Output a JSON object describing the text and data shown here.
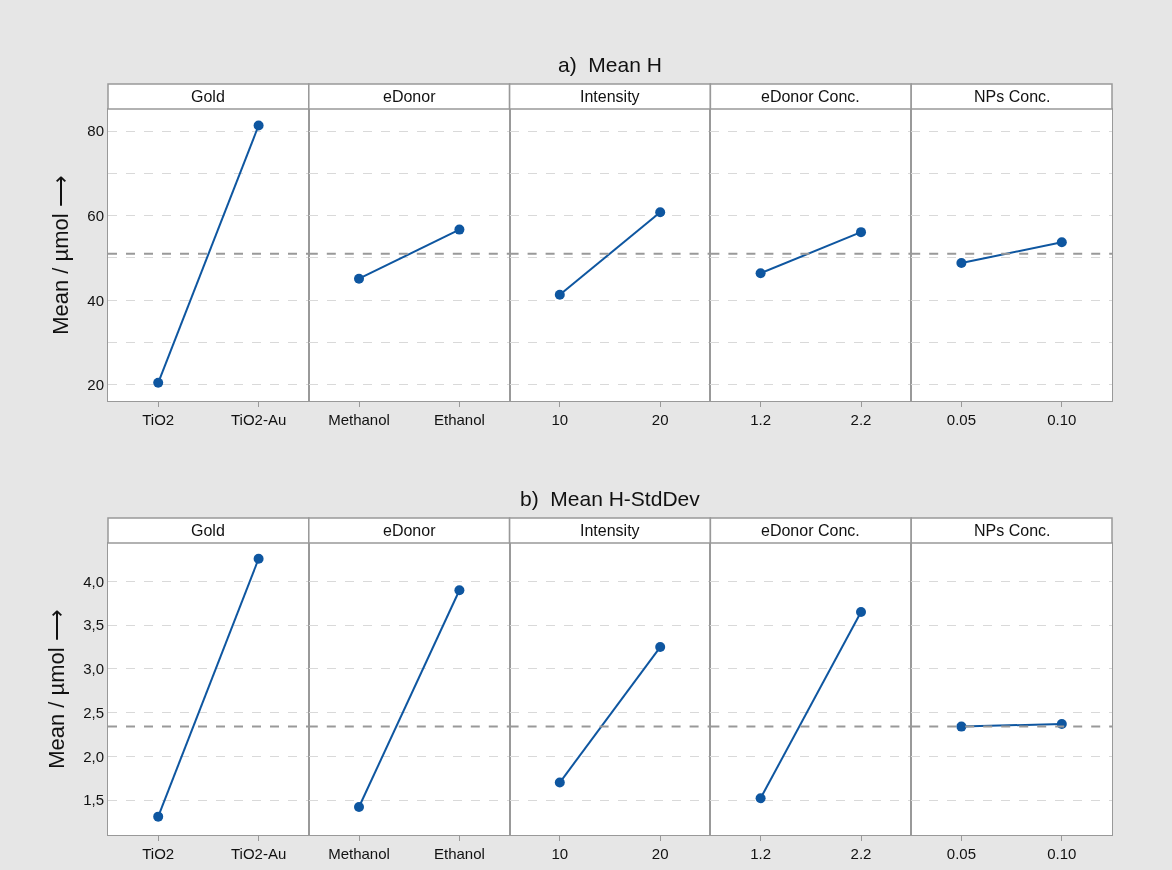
{
  "chart_data": [
    {
      "type": "line",
      "title": "Gold",
      "annotations": [
        "a)  Mean H"
      ],
      "ylabel": "Mean / µmol ⟶",
      "categories": [
        "TiO2",
        "TiO2-Au"
      ],
      "values": [
        20.5,
        81.3
      ],
      "color": "#0e56a0",
      "marker": "circle",
      "ylim": [
        16.2,
        85.2
      ],
      "yticks": [
        20,
        {
          "value": 30,
          "label": null
        },
        40,
        {
          "value": 50,
          "label": null
        },
        60,
        {
          "value": 70,
          "label": null
        },
        80
      ],
      "grid": "y",
      "ref_lines": [
        {
          "axis": "y",
          "value": 51.0,
          "color": "#999999",
          "line_style": "dashed"
        }
      ]
    },
    {
      "type": "line",
      "title": "eDonor",
      "categories": [
        "Methanol",
        "Ethanol"
      ],
      "values": [
        45.1,
        56.7
      ],
      "color": "#0e56a0",
      "marker": "circle",
      "ylim": [
        16.2,
        85.2
      ],
      "yticks": [
        20,
        30,
        40,
        50,
        60,
        70,
        80
      ],
      "grid": "y",
      "tick_labels": "x",
      "ref_lines": [
        {
          "axis": "y",
          "value": 51.0,
          "color": "#999999",
          "line_style": "dashed"
        }
      ]
    },
    {
      "type": "line",
      "title": "Intensity",
      "categories": [
        "10",
        "20"
      ],
      "values": [
        41.3,
        60.8
      ],
      "color": "#0e56a0",
      "marker": "circle",
      "ylim": [
        16.2,
        85.2
      ],
      "yticks": [
        20,
        30,
        40,
        50,
        60,
        70,
        80
      ],
      "grid": "y",
      "tick_labels": "x",
      "ref_lines": [
        {
          "axis": "y",
          "value": 51.0,
          "color": "#999999",
          "line_style": "dashed"
        }
      ]
    },
    {
      "type": "line",
      "title": "eDonor Conc.",
      "categories": [
        "1.2",
        "2.2"
      ],
      "values": [
        46.4,
        56.1
      ],
      "color": "#0e56a0",
      "marker": "circle",
      "ylim": [
        16.2,
        85.2
      ],
      "yticks": [
        20,
        30,
        40,
        50,
        60,
        70,
        80
      ],
      "grid": "y",
      "tick_labels": "x",
      "ref_lines": [
        {
          "axis": "y",
          "value": 51.0,
          "color": "#999999",
          "line_style": "dashed"
        }
      ]
    },
    {
      "type": "line",
      "title": "NPs Conc.",
      "categories": [
        "0.05",
        "0.10"
      ],
      "values": [
        48.8,
        53.7
      ],
      "color": "#0e56a0",
      "marker": "circle",
      "ylim": [
        16.2,
        85.2
      ],
      "yticks": [
        20,
        30,
        40,
        50,
        60,
        70,
        80
      ],
      "grid": "y",
      "tick_labels": "x",
      "ref_lines": [
        {
          "axis": "y",
          "value": 51.0,
          "color": "#999999",
          "line_style": "dashed"
        }
      ]
    },
    {
      "type": "line",
      "title": "Gold",
      "annotations": [
        "b)  Mean H-StdDev"
      ],
      "ylabel": "Mean / µmol ⟶",
      "categories": [
        "TiO2",
        "TiO2-Au"
      ],
      "values": [
        1.31,
        4.26
      ],
      "color": "#0e56a0",
      "marker": "circle",
      "ylim": [
        1.1,
        4.44
      ],
      "yticks": [
        {
          "value": 1.5,
          "label": "1,5"
        },
        {
          "value": 2.0,
          "label": "2,0"
        },
        {
          "value": 2.5,
          "label": "2,5"
        },
        {
          "value": 3.0,
          "label": "3,0"
        },
        {
          "value": 3.5,
          "label": "3,5"
        },
        {
          "value": 4.0,
          "label": "4,0"
        }
      ],
      "grid": "y",
      "ref_lines": [
        {
          "axis": "y",
          "value": 2.34,
          "color": "#999999",
          "line_style": "dashed"
        }
      ]
    },
    {
      "type": "line",
      "title": "eDonor",
      "categories": [
        "Methanol",
        "Ethanol"
      ],
      "values": [
        1.42,
        3.9
      ],
      "color": "#0e56a0",
      "marker": "circle",
      "ylim": [
        1.1,
        4.44
      ],
      "yticks": [
        1.5,
        2.0,
        2.5,
        3.0,
        3.5,
        4.0
      ],
      "grid": "y",
      "tick_labels": "x",
      "ref_lines": [
        {
          "axis": "y",
          "value": 2.34,
          "color": "#999999",
          "line_style": "dashed"
        }
      ]
    },
    {
      "type": "line",
      "title": "Intensity",
      "categories": [
        "10",
        "20"
      ],
      "values": [
        1.7,
        3.25
      ],
      "color": "#0e56a0",
      "marker": "circle",
      "ylim": [
        1.1,
        4.44
      ],
      "yticks": [
        1.5,
        2.0,
        2.5,
        3.0,
        3.5,
        4.0
      ],
      "grid": "y",
      "tick_labels": "x",
      "ref_lines": [
        {
          "axis": "y",
          "value": 2.34,
          "color": "#999999",
          "line_style": "dashed"
        }
      ]
    },
    {
      "type": "line",
      "title": "eDonor Conc.",
      "categories": [
        "1.2",
        "2.2"
      ],
      "values": [
        1.52,
        3.65
      ],
      "color": "#0e56a0",
      "marker": "circle",
      "ylim": [
        1.1,
        4.44
      ],
      "yticks": [
        1.5,
        2.0,
        2.5,
        3.0,
        3.5,
        4.0
      ],
      "grid": "y",
      "tick_labels": "x",
      "ref_lines": [
        {
          "axis": "y",
          "value": 2.34,
          "color": "#999999",
          "line_style": "dashed"
        }
      ]
    },
    {
      "type": "line",
      "title": "NPs Conc.",
      "categories": [
        "0.05",
        "0.10"
      ],
      "values": [
        2.34,
        2.37
      ],
      "color": "#0e56a0",
      "marker": "circle",
      "ylim": [
        1.1,
        4.44
      ],
      "yticks": [
        1.5,
        2.0,
        2.5,
        3.0,
        3.5,
        4.0
      ],
      "grid": "y",
      "tick_labels": "x",
      "ref_lines": [
        {
          "axis": "y",
          "value": 2.34,
          "color": "#999999",
          "line_style": "dashed"
        }
      ]
    }
  ]
}
